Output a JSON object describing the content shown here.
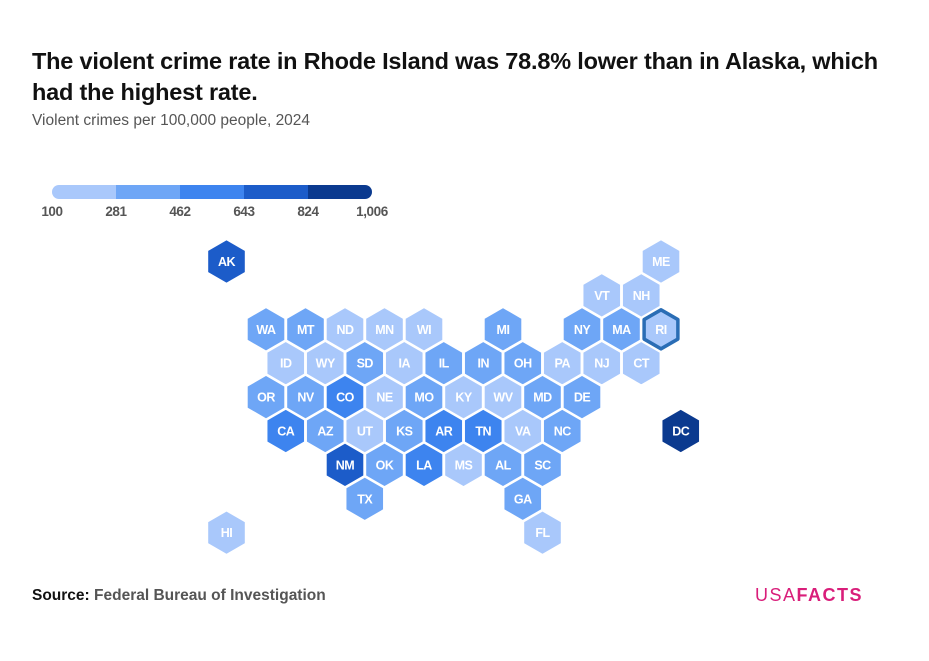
{
  "title": "The violent crime rate in Rhode Island was 78.8% lower than in Alaska, which had the highest rate.",
  "subtitle": "Violent crimes per 100,000 people, 2024",
  "source": {
    "label": "Source:",
    "value": "Federal Bureau of Investigation"
  },
  "brand": {
    "part1": "USA",
    "part2": "FACTS",
    "color": "#d91e7a"
  },
  "chart_data": {
    "type": "hexbin-map",
    "title": "The violent crime rate in Rhode Island was 78.8% lower than in Alaska, which had the highest rate.",
    "subtitle": "Violent crimes per 100,000 people, 2024",
    "highlighted": "RI",
    "highlight_color": "#2a6db5",
    "legend": {
      "breaks": [
        "100",
        "281",
        "462",
        "643",
        "824",
        "1,006"
      ],
      "colors": [
        "#a9c8fb",
        "#6ea6f6",
        "#3d84ef",
        "#1c5cc9",
        "#0b3a8f"
      ]
    },
    "states": [
      {
        "abbr": "AK",
        "bin": 3,
        "col": 0,
        "row": 0
      },
      {
        "abbr": "ME",
        "bin": 0,
        "col": 11,
        "row": 0
      },
      {
        "abbr": "VT",
        "bin": 0,
        "col": 9.5,
        "row": 1
      },
      {
        "abbr": "NH",
        "bin": 0,
        "col": 10.5,
        "row": 1
      },
      {
        "abbr": "WA",
        "bin": 1,
        "col": 1,
        "row": 2
      },
      {
        "abbr": "MT",
        "bin": 1,
        "col": 2,
        "row": 2
      },
      {
        "abbr": "ND",
        "bin": 0,
        "col": 3,
        "row": 2
      },
      {
        "abbr": "MN",
        "bin": 0,
        "col": 4,
        "row": 2
      },
      {
        "abbr": "WI",
        "bin": 0,
        "col": 5,
        "row": 2
      },
      {
        "abbr": "MI",
        "bin": 1,
        "col": 7,
        "row": 2
      },
      {
        "abbr": "NY",
        "bin": 1,
        "col": 9,
        "row": 2
      },
      {
        "abbr": "MA",
        "bin": 1,
        "col": 10,
        "row": 2
      },
      {
        "abbr": "RI",
        "bin": 0,
        "col": 11,
        "row": 2
      },
      {
        "abbr": "ID",
        "bin": 0,
        "col": 1.5,
        "row": 3
      },
      {
        "abbr": "WY",
        "bin": 0,
        "col": 2.5,
        "row": 3
      },
      {
        "abbr": "SD",
        "bin": 1,
        "col": 3.5,
        "row": 3
      },
      {
        "abbr": "IA",
        "bin": 0,
        "col": 4.5,
        "row": 3
      },
      {
        "abbr": "IL",
        "bin": 1,
        "col": 5.5,
        "row": 3
      },
      {
        "abbr": "IN",
        "bin": 1,
        "col": 6.5,
        "row": 3
      },
      {
        "abbr": "OH",
        "bin": 1,
        "col": 7.5,
        "row": 3
      },
      {
        "abbr": "PA",
        "bin": 0,
        "col": 8.5,
        "row": 3
      },
      {
        "abbr": "NJ",
        "bin": 0,
        "col": 9.5,
        "row": 3
      },
      {
        "abbr": "CT",
        "bin": 0,
        "col": 10.5,
        "row": 3
      },
      {
        "abbr": "OR",
        "bin": 1,
        "col": 1,
        "row": 4
      },
      {
        "abbr": "NV",
        "bin": 1,
        "col": 2,
        "row": 4
      },
      {
        "abbr": "CO",
        "bin": 2,
        "col": 3,
        "row": 4
      },
      {
        "abbr": "NE",
        "bin": 0,
        "col": 4,
        "row": 4
      },
      {
        "abbr": "MO",
        "bin": 1,
        "col": 5,
        "row": 4
      },
      {
        "abbr": "KY",
        "bin": 0,
        "col": 6,
        "row": 4
      },
      {
        "abbr": "WV",
        "bin": 0,
        "col": 7,
        "row": 4
      },
      {
        "abbr": "MD",
        "bin": 1,
        "col": 8,
        "row": 4
      },
      {
        "abbr": "DE",
        "bin": 1,
        "col": 9,
        "row": 4
      },
      {
        "abbr": "CA",
        "bin": 2,
        "col": 1.5,
        "row": 5
      },
      {
        "abbr": "AZ",
        "bin": 1,
        "col": 2.5,
        "row": 5
      },
      {
        "abbr": "UT",
        "bin": 0,
        "col": 3.5,
        "row": 5
      },
      {
        "abbr": "KS",
        "bin": 1,
        "col": 4.5,
        "row": 5
      },
      {
        "abbr": "AR",
        "bin": 2,
        "col": 5.5,
        "row": 5
      },
      {
        "abbr": "TN",
        "bin": 2,
        "col": 6.5,
        "row": 5
      },
      {
        "abbr": "VA",
        "bin": 0,
        "col": 7.5,
        "row": 5
      },
      {
        "abbr": "NC",
        "bin": 1,
        "col": 8.5,
        "row": 5
      },
      {
        "abbr": "DC",
        "bin": 4,
        "col": 11.5,
        "row": 5
      },
      {
        "abbr": "NM",
        "bin": 3,
        "col": 3,
        "row": 6
      },
      {
        "abbr": "OK",
        "bin": 1,
        "col": 4,
        "row": 6
      },
      {
        "abbr": "LA",
        "bin": 2,
        "col": 5,
        "row": 6
      },
      {
        "abbr": "MS",
        "bin": 0,
        "col": 6,
        "row": 6
      },
      {
        "abbr": "AL",
        "bin": 1,
        "col": 7,
        "row": 6
      },
      {
        "abbr": "SC",
        "bin": 1,
        "col": 8,
        "row": 6
      },
      {
        "abbr": "TX",
        "bin": 1,
        "col": 3.5,
        "row": 7
      },
      {
        "abbr": "GA",
        "bin": 1,
        "col": 7.5,
        "row": 7
      },
      {
        "abbr": "HI",
        "bin": 0,
        "col": 0,
        "row": 8
      },
      {
        "abbr": "FL",
        "bin": 0,
        "col": 8,
        "row": 8
      }
    ]
  }
}
